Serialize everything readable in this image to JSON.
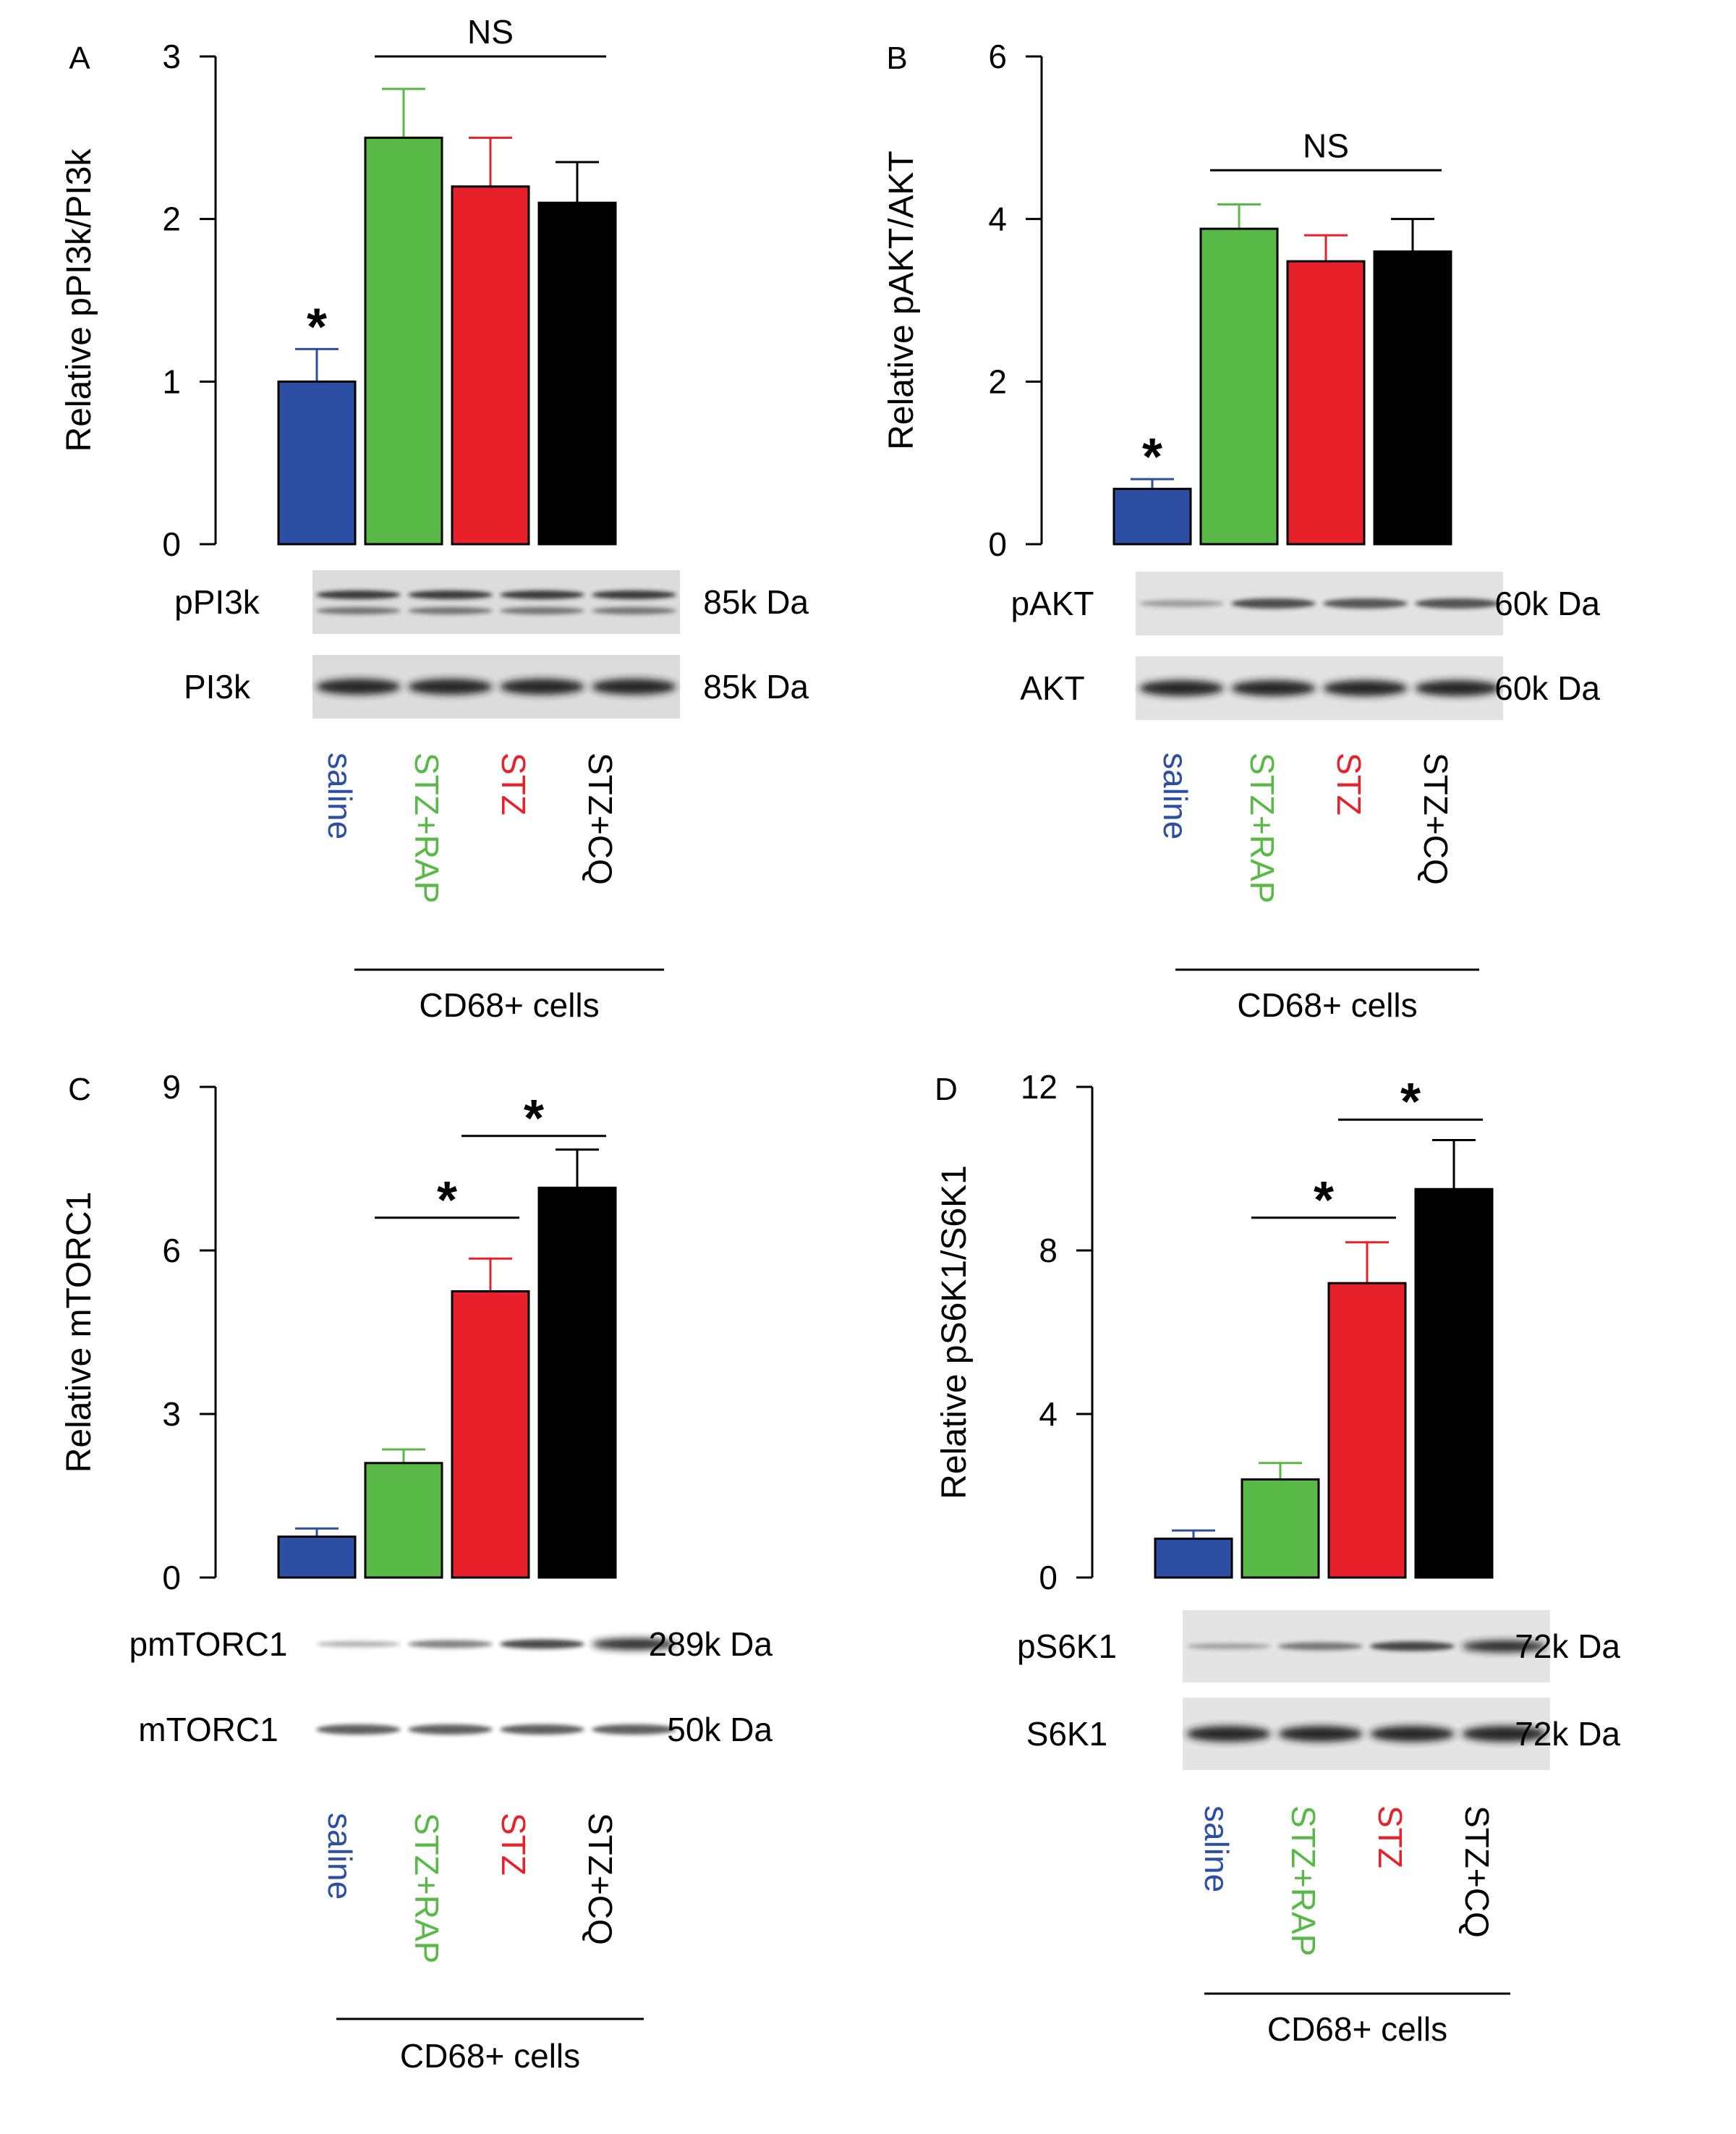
{
  "colors": {
    "saline": "#2c4ea3",
    "rap": "#58b947",
    "stz": "#e8202a",
    "cq": "#000000"
  },
  "chart_data": [
    {
      "type": "bar",
      "panel_label": "A",
      "ylabel": "Relative pPI3k/PI3k",
      "yticks": [
        0,
        1,
        2,
        3
      ],
      "ylim": [
        0,
        3
      ],
      "categories": [
        "saline",
        "STZ+RAP",
        "STZ",
        "STZ+CQ"
      ],
      "values": [
        1.0,
        2.5,
        2.2,
        2.1
      ],
      "errors": [
        0.2,
        0.3,
        0.3,
        0.25
      ],
      "annotations": [
        {
          "text": "*",
          "type": "star",
          "bar": 0
        },
        {
          "text": "NS",
          "type": "bracket",
          "from": 1,
          "to": 3,
          "y": 3.0
        }
      ],
      "blots": [
        {
          "label": "pPI3k",
          "size": "85k Da",
          "style": "double"
        },
        {
          "label": "PI3k",
          "size": "85k Da",
          "style": "strong"
        }
      ],
      "group_label": "CD68+ cells"
    },
    {
      "type": "bar",
      "panel_label": "B",
      "ylabel": "Relative pAKT/AKT",
      "yticks": [
        0,
        2,
        4,
        6
      ],
      "ylim": [
        0,
        6
      ],
      "categories": [
        "saline",
        "STZ+RAP",
        "STZ",
        "STZ+CQ"
      ],
      "values": [
        0.68,
        3.88,
        3.48,
        3.6
      ],
      "errors": [
        0.12,
        0.3,
        0.32,
        0.4
      ],
      "annotations": [
        {
          "text": "*",
          "type": "star",
          "bar": 0
        },
        {
          "text": "NS",
          "type": "bracket",
          "from": 1,
          "to": 3,
          "y": 4.6
        }
      ],
      "blots": [
        {
          "label": "pAKT",
          "size": "60k Da",
          "style": "weak-first"
        },
        {
          "label": "AKT",
          "size": "60k Da",
          "style": "strong"
        }
      ],
      "group_label": "CD68+ cells"
    },
    {
      "type": "bar",
      "panel_label": "C",
      "ylabel": "Relative mTORC1",
      "yticks": [
        0,
        3,
        6,
        9
      ],
      "ylim": [
        0,
        9
      ],
      "categories": [
        "saline",
        "STZ+RAP",
        "STZ",
        "STZ+CQ"
      ],
      "values": [
        0.75,
        2.1,
        5.25,
        7.15
      ],
      "errors": [
        0.15,
        0.25,
        0.6,
        0.7
      ],
      "annotations": [
        {
          "text": "*",
          "type": "bracket",
          "from": 1,
          "to": 2,
          "y": 6.6
        },
        {
          "text": "*",
          "type": "bracket",
          "from": 2,
          "to": 3,
          "y": 8.1
        }
      ],
      "blots": [
        {
          "label": "pmTORC1",
          "size": "289k Da",
          "style": "increasing"
        },
        {
          "label": "mTORC1",
          "size": "50k Da",
          "style": "medium"
        }
      ],
      "group_label": "CD68+ cells"
    },
    {
      "type": "bar",
      "panel_label": "D",
      "ylabel": "Relative pS6K1/S6K1",
      "yticks": [
        0,
        4,
        8,
        12
      ],
      "ylim": [
        0,
        12
      ],
      "categories": [
        "saline",
        "STZ+RAP",
        "STZ",
        "STZ+CQ"
      ],
      "values": [
        0.95,
        2.4,
        7.2,
        9.5
      ],
      "errors": [
        0.2,
        0.4,
        1.0,
        1.2
      ],
      "annotations": [
        {
          "text": "*",
          "type": "bracket",
          "from": 1,
          "to": 2,
          "y": 8.8
        },
        {
          "text": "*",
          "type": "bracket",
          "from": 2,
          "to": 3,
          "y": 11.2
        }
      ],
      "blots": [
        {
          "label": "pS6K1",
          "size": "72k Da",
          "style": "increasing"
        },
        {
          "label": "S6K1",
          "size": "72k Da",
          "style": "strong"
        }
      ],
      "group_label": "CD68+ cells"
    }
  ]
}
